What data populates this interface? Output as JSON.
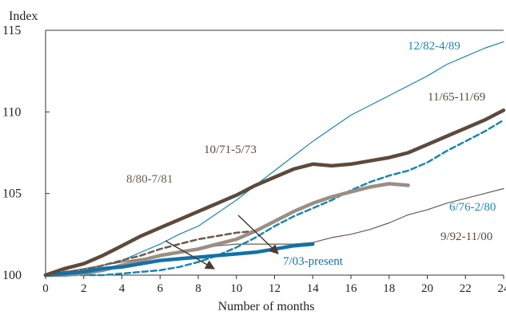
{
  "chart_data": {
    "type": "line",
    "title": "",
    "xlabel": "Number of months",
    "ylabel": "Index",
    "xlim": [
      0,
      24
    ],
    "ylim": [
      100,
      115
    ],
    "xticks": [
      0,
      2,
      4,
      6,
      8,
      10,
      12,
      14,
      16,
      18,
      20,
      22,
      24
    ],
    "xtick_labels": [
      "0",
      "2",
      "4",
      "6",
      "8",
      "10",
      "12",
      "14",
      "16",
      "18",
      "20",
      "22",
      "24"
    ],
    "yticks": [
      100,
      105,
      110,
      115
    ],
    "ytick_labels": [
      "100",
      "105",
      "110",
      "115"
    ],
    "grid": false,
    "legend": "none",
    "series": [
      {
        "name": "12/82-4/89",
        "color": "#1b86b0",
        "style": "thin",
        "x": [
          0,
          1,
          2,
          3,
          4,
          5,
          6,
          7,
          8,
          9,
          10,
          11,
          12,
          13,
          14,
          15,
          16,
          17,
          18,
          19,
          20,
          21,
          22,
          23,
          24
        ],
        "values": [
          100.0,
          100.1,
          100.3,
          100.6,
          100.9,
          101.4,
          101.9,
          102.5,
          103.0,
          103.8,
          104.6,
          105.5,
          106.4,
          107.3,
          108.2,
          109.0,
          109.8,
          110.4,
          111.0,
          111.6,
          112.2,
          112.9,
          113.4,
          113.9,
          114.3
        ]
      },
      {
        "name": "11/65-11/69",
        "color": "#5c4a3d",
        "style": "thick",
        "x": [
          0,
          1,
          2,
          3,
          4,
          5,
          6,
          7,
          8,
          9,
          10,
          11,
          12,
          13,
          14,
          15,
          16,
          17,
          18,
          19,
          20,
          21,
          22,
          23,
          24
        ],
        "values": [
          100.0,
          100.4,
          100.7,
          101.2,
          101.8,
          102.4,
          102.9,
          103.4,
          103.9,
          104.4,
          104.9,
          105.5,
          106.0,
          106.5,
          106.8,
          106.7,
          106.8,
          107.0,
          107.2,
          107.5,
          108.0,
          108.5,
          109.0,
          109.5,
          110.1
        ]
      },
      {
        "name": "6/76-2/80",
        "color": "#1b86b0",
        "style": "dashed",
        "x": [
          0,
          1,
          2,
          3,
          4,
          5,
          6,
          7,
          8,
          9,
          10,
          11,
          12,
          13,
          14,
          15,
          16,
          17,
          18,
          19,
          20,
          21,
          22,
          23,
          24
        ],
        "values": [
          100.0,
          100.0,
          100.0,
          100.0,
          100.1,
          100.2,
          100.3,
          100.5,
          100.8,
          101.2,
          101.7,
          102.3,
          103.0,
          103.6,
          104.1,
          104.6,
          105.2,
          105.7,
          106.1,
          106.4,
          106.9,
          107.6,
          108.2,
          108.8,
          109.5
        ]
      },
      {
        "name": "10/71-5/73",
        "color": "#9a8e86",
        "style": "thick",
        "x": [
          0,
          1,
          2,
          3,
          4,
          5,
          6,
          7,
          8,
          9,
          10,
          11,
          12,
          13,
          14,
          15,
          16,
          17,
          18,
          19
        ],
        "values": [
          100.0,
          100.0,
          100.1,
          100.3,
          100.6,
          100.9,
          101.2,
          101.4,
          101.6,
          101.9,
          102.2,
          102.7,
          103.3,
          103.9,
          104.4,
          104.8,
          105.1,
          105.4,
          105.6,
          105.5
        ]
      },
      {
        "name": "8/80-7/81",
        "color": "#6b5a4e",
        "style": "dashed",
        "x": [
          0,
          1,
          2,
          3,
          4,
          5,
          6,
          7,
          8,
          9,
          10,
          11
        ],
        "values": [
          100.0,
          100.2,
          100.3,
          100.6,
          100.9,
          101.2,
          101.6,
          101.9,
          102.2,
          102.4,
          102.6,
          102.7
        ]
      },
      {
        "name": "9/92-11/00",
        "color": "#6b5a4e",
        "style": "thin",
        "x": [
          0,
          1,
          2,
          3,
          4,
          5,
          6,
          7,
          8,
          9,
          10,
          11,
          12,
          13,
          14,
          15,
          16,
          17,
          18,
          19,
          20,
          21,
          22,
          23,
          24
        ],
        "values": [
          100.0,
          100.2,
          100.4,
          100.6,
          100.8,
          101.0,
          101.2,
          101.4,
          101.6,
          101.8,
          101.9,
          101.9,
          101.9,
          101.9,
          102.0,
          102.3,
          102.5,
          102.8,
          103.2,
          103.7,
          104.0,
          104.4,
          104.7,
          105.0,
          105.3
        ]
      },
      {
        "name": "7/03-present",
        "color": "#1272a8",
        "style": "thick",
        "x": [
          0,
          1,
          2,
          3,
          4,
          5,
          6,
          7,
          8,
          9,
          10,
          11,
          12,
          13,
          14
        ],
        "values": [
          100.0,
          100.1,
          100.2,
          100.4,
          100.5,
          100.7,
          100.9,
          101.0,
          101.1,
          101.2,
          101.3,
          101.4,
          101.6,
          101.8,
          101.9
        ]
      }
    ],
    "annotations": [
      {
        "text": "12/82-4/89",
        "color": "#1b86b0"
      },
      {
        "text": "11/65-11/69",
        "color": "#5c4a3d"
      },
      {
        "text": "10/71-5/73",
        "color": "#5c4a3d"
      },
      {
        "text": "8/80-7/81",
        "color": "#6b5a4e"
      },
      {
        "text": "6/76-2/80",
        "color": "#1b86b0"
      },
      {
        "text": "9/92-11/00",
        "color": "#5c4a3d"
      },
      {
        "text": "7/03-present",
        "color": "#1272a8"
      }
    ]
  }
}
